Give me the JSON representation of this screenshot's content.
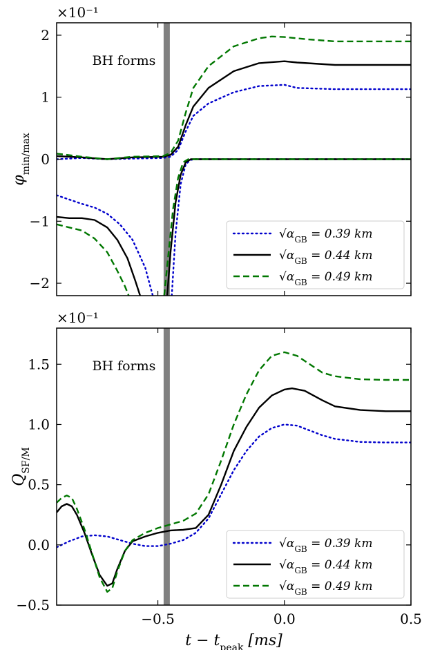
{
  "chart_data": [
    {
      "type": "line",
      "panel": "top",
      "ylabel": "φ_min/max",
      "xlabel": "",
      "scale_label": "×10⁻¹",
      "annotation": "BH forms",
      "bh_formation_x": -0.465,
      "xlim": [
        -0.9,
        0.5
      ],
      "ylim": [
        -2.2,
        2.2
      ],
      "xticks": [
        -0.5,
        0.0,
        0.5
      ],
      "yticks": [
        -2,
        -1,
        0,
        1,
        2
      ],
      "ytick_labels": [
        "−2",
        "−1",
        "0",
        "1",
        "2"
      ],
      "grid": false,
      "legend_position": "bottom-right",
      "series": [
        {
          "name": "√α_GB = 0.39 km",
          "color": "#0000cc",
          "style": "dotted",
          "segments": [
            [
              [
                -0.9,
                0.0
              ],
              [
                -0.8,
                0.02
              ],
              [
                -0.7,
                0.0
              ],
              [
                -0.6,
                0.01
              ],
              [
                -0.48,
                0.02
              ],
              [
                -0.45,
                0.04
              ],
              [
                -0.42,
                0.15
              ],
              [
                -0.39,
                0.45
              ],
              [
                -0.36,
                0.7
              ],
              [
                -0.3,
                0.9
              ],
              [
                -0.2,
                1.08
              ],
              [
                -0.1,
                1.18
              ],
              [
                0.0,
                1.2
              ],
              [
                0.05,
                1.15
              ],
              [
                0.2,
                1.13
              ],
              [
                0.5,
                1.13
              ]
            ],
            [
              [
                -0.9,
                -0.58
              ],
              [
                -0.85,
                -0.65
              ],
              [
                -0.8,
                -0.72
              ],
              [
                -0.75,
                -0.78
              ],
              [
                -0.7,
                -0.88
              ],
              [
                -0.65,
                -1.05
              ],
              [
                -0.6,
                -1.3
              ],
              [
                -0.55,
                -1.75
              ],
              [
                -0.52,
                -2.2
              ]
            ],
            [
              [
                -0.445,
                -2.2
              ],
              [
                -0.43,
                -1.2
              ],
              [
                -0.41,
                -0.4
              ],
              [
                -0.39,
                -0.08
              ],
              [
                -0.37,
                -0.01
              ],
              [
                -0.35,
                0.0
              ],
              [
                0.5,
                0.0
              ]
            ]
          ]
        },
        {
          "name": "√α_GB = 0.44 km",
          "color": "#000000",
          "style": "solid",
          "segments": [
            [
              [
                -0.9,
                0.05
              ],
              [
                -0.8,
                0.03
              ],
              [
                -0.7,
                0.0
              ],
              [
                -0.6,
                0.03
              ],
              [
                -0.48,
                0.04
              ],
              [
                -0.45,
                0.07
              ],
              [
                -0.42,
                0.2
              ],
              [
                -0.39,
                0.55
              ],
              [
                -0.36,
                0.85
              ],
              [
                -0.3,
                1.15
              ],
              [
                -0.2,
                1.42
              ],
              [
                -0.1,
                1.55
              ],
              [
                0.0,
                1.58
              ],
              [
                0.05,
                1.56
              ],
              [
                0.2,
                1.52
              ],
              [
                0.5,
                1.52
              ]
            ],
            [
              [
                -0.9,
                -0.93
              ],
              [
                -0.85,
                -0.95
              ],
              [
                -0.8,
                -0.95
              ],
              [
                -0.75,
                -0.98
              ],
              [
                -0.7,
                -1.1
              ],
              [
                -0.66,
                -1.3
              ],
              [
                -0.62,
                -1.6
              ],
              [
                -0.59,
                -1.95
              ],
              [
                -0.57,
                -2.2
              ]
            ],
            [
              [
                -0.463,
                -2.2
              ],
              [
                -0.45,
                -1.5
              ],
              [
                -0.43,
                -0.7
              ],
              [
                -0.41,
                -0.25
              ],
              [
                -0.39,
                -0.05
              ],
              [
                -0.37,
                0.0
              ],
              [
                0.5,
                0.0
              ]
            ]
          ]
        },
        {
          "name": "√α_GB = 0.49 km",
          "color": "#007700",
          "style": "dashed",
          "segments": [
            [
              [
                -0.9,
                0.09
              ],
              [
                -0.8,
                0.04
              ],
              [
                -0.7,
                0.0
              ],
              [
                -0.6,
                0.04
              ],
              [
                -0.48,
                0.05
              ],
              [
                -0.45,
                0.1
              ],
              [
                -0.42,
                0.3
              ],
              [
                -0.39,
                0.75
              ],
              [
                -0.36,
                1.15
              ],
              [
                -0.3,
                1.5
              ],
              [
                -0.2,
                1.82
              ],
              [
                -0.1,
                1.95
              ],
              [
                -0.05,
                1.98
              ],
              [
                0.0,
                1.97
              ],
              [
                0.1,
                1.93
              ],
              [
                0.2,
                1.9
              ],
              [
                0.5,
                1.9
              ]
            ],
            [
              [
                -0.9,
                -1.05
              ],
              [
                -0.85,
                -1.1
              ],
              [
                -0.8,
                -1.15
              ],
              [
                -0.75,
                -1.28
              ],
              [
                -0.7,
                -1.5
              ],
              [
                -0.66,
                -1.8
              ],
              [
                -0.63,
                -2.05
              ],
              [
                -0.615,
                -2.2
              ]
            ],
            [
              [
                -0.475,
                -2.2
              ],
              [
                -0.46,
                -1.6
              ],
              [
                -0.44,
                -0.8
              ],
              [
                -0.42,
                -0.3
              ],
              [
                -0.4,
                -0.05
              ],
              [
                -0.38,
                0.0
              ],
              [
                0.5,
                0.0
              ]
            ]
          ]
        }
      ]
    },
    {
      "type": "line",
      "panel": "bottom",
      "ylabel": "Q_SF/M",
      "xlabel": "t − t_peak [ms]",
      "scale_label": "×10⁻¹",
      "annotation": "BH forms",
      "bh_formation_x": -0.465,
      "xlim": [
        -0.9,
        0.5
      ],
      "ylim": [
        -0.5,
        1.8
      ],
      "xticks": [
        -0.5,
        0.0,
        0.5
      ],
      "xtick_labels": [
        "−0.5",
        "0.0",
        "0.5"
      ],
      "yticks": [
        -0.5,
        0.0,
        0.5,
        1.0,
        1.5
      ],
      "ytick_labels": [
        "−0.5",
        "0.0",
        "0.5",
        "1.0",
        "1.5"
      ],
      "grid": false,
      "legend_position": "bottom-right",
      "series": [
        {
          "name": "√α_GB = 0.39 km",
          "color": "#0000cc",
          "style": "dotted",
          "segments": [
            [
              [
                -0.9,
                -0.02
              ],
              [
                -0.85,
                0.03
              ],
              [
                -0.8,
                0.07
              ],
              [
                -0.75,
                0.08
              ],
              [
                -0.7,
                0.07
              ],
              [
                -0.65,
                0.04
              ],
              [
                -0.6,
                0.01
              ],
              [
                -0.55,
                -0.01
              ],
              [
                -0.5,
                -0.01
              ],
              [
                -0.45,
                0.01
              ],
              [
                -0.4,
                0.04
              ],
              [
                -0.35,
                0.1
              ],
              [
                -0.3,
                0.22
              ],
              [
                -0.25,
                0.42
              ],
              [
                -0.2,
                0.62
              ],
              [
                -0.15,
                0.78
              ],
              [
                -0.1,
                0.9
              ],
              [
                -0.05,
                0.97
              ],
              [
                0.0,
                1.0
              ],
              [
                0.05,
                0.99
              ],
              [
                0.1,
                0.95
              ],
              [
                0.15,
                0.91
              ],
              [
                0.2,
                0.88
              ],
              [
                0.3,
                0.855
              ],
              [
                0.4,
                0.85
              ],
              [
                0.5,
                0.85
              ]
            ]
          ]
        },
        {
          "name": "√α_GB = 0.44 km",
          "color": "#000000",
          "style": "solid",
          "segments": [
            [
              [
                -0.9,
                0.27
              ],
              [
                -0.88,
                0.32
              ],
              [
                -0.86,
                0.34
              ],
              [
                -0.84,
                0.32
              ],
              [
                -0.82,
                0.25
              ],
              [
                -0.79,
                0.1
              ],
              [
                -0.76,
                -0.08
              ],
              [
                -0.73,
                -0.25
              ],
              [
                -0.7,
                -0.34
              ],
              [
                -0.68,
                -0.32
              ],
              [
                -0.66,
                -0.2
              ],
              [
                -0.63,
                -0.05
              ],
              [
                -0.6,
                0.03
              ],
              [
                -0.55,
                0.07
              ],
              [
                -0.5,
                0.1
              ],
              [
                -0.45,
                0.12
              ],
              [
                -0.4,
                0.125
              ],
              [
                -0.35,
                0.14
              ],
              [
                -0.3,
                0.25
              ],
              [
                -0.25,
                0.5
              ],
              [
                -0.2,
                0.78
              ],
              [
                -0.15,
                0.98
              ],
              [
                -0.1,
                1.14
              ],
              [
                -0.05,
                1.24
              ],
              [
                0.0,
                1.29
              ],
              [
                0.03,
                1.3
              ],
              [
                0.08,
                1.28
              ],
              [
                0.15,
                1.2
              ],
              [
                0.2,
                1.15
              ],
              [
                0.3,
                1.12
              ],
              [
                0.4,
                1.11
              ],
              [
                0.5,
                1.11
              ]
            ]
          ]
        },
        {
          "name": "√α_GB = 0.49 km",
          "color": "#007700",
          "style": "dashed",
          "segments": [
            [
              [
                -0.9,
                0.35
              ],
              [
                -0.88,
                0.39
              ],
              [
                -0.86,
                0.41
              ],
              [
                -0.84,
                0.39
              ],
              [
                -0.82,
                0.3
              ],
              [
                -0.79,
                0.13
              ],
              [
                -0.76,
                -0.07
              ],
              [
                -0.73,
                -0.27
              ],
              [
                -0.7,
                -0.39
              ],
              [
                -0.68,
                -0.36
              ],
              [
                -0.66,
                -0.22
              ],
              [
                -0.63,
                -0.05
              ],
              [
                -0.6,
                0.04
              ],
              [
                -0.55,
                0.1
              ],
              [
                -0.5,
                0.14
              ],
              [
                -0.45,
                0.17
              ],
              [
                -0.4,
                0.2
              ],
              [
                -0.35,
                0.26
              ],
              [
                -0.3,
                0.42
              ],
              [
                -0.25,
                0.7
              ],
              [
                -0.2,
                1.0
              ],
              [
                -0.15,
                1.25
              ],
              [
                -0.1,
                1.45
              ],
              [
                -0.05,
                1.57
              ],
              [
                0.0,
                1.6
              ],
              [
                0.05,
                1.57
              ],
              [
                0.1,
                1.5
              ],
              [
                0.15,
                1.43
              ],
              [
                0.2,
                1.4
              ],
              [
                0.3,
                1.375
              ],
              [
                0.4,
                1.37
              ],
              [
                0.5,
                1.37
              ]
            ]
          ]
        }
      ]
    }
  ]
}
